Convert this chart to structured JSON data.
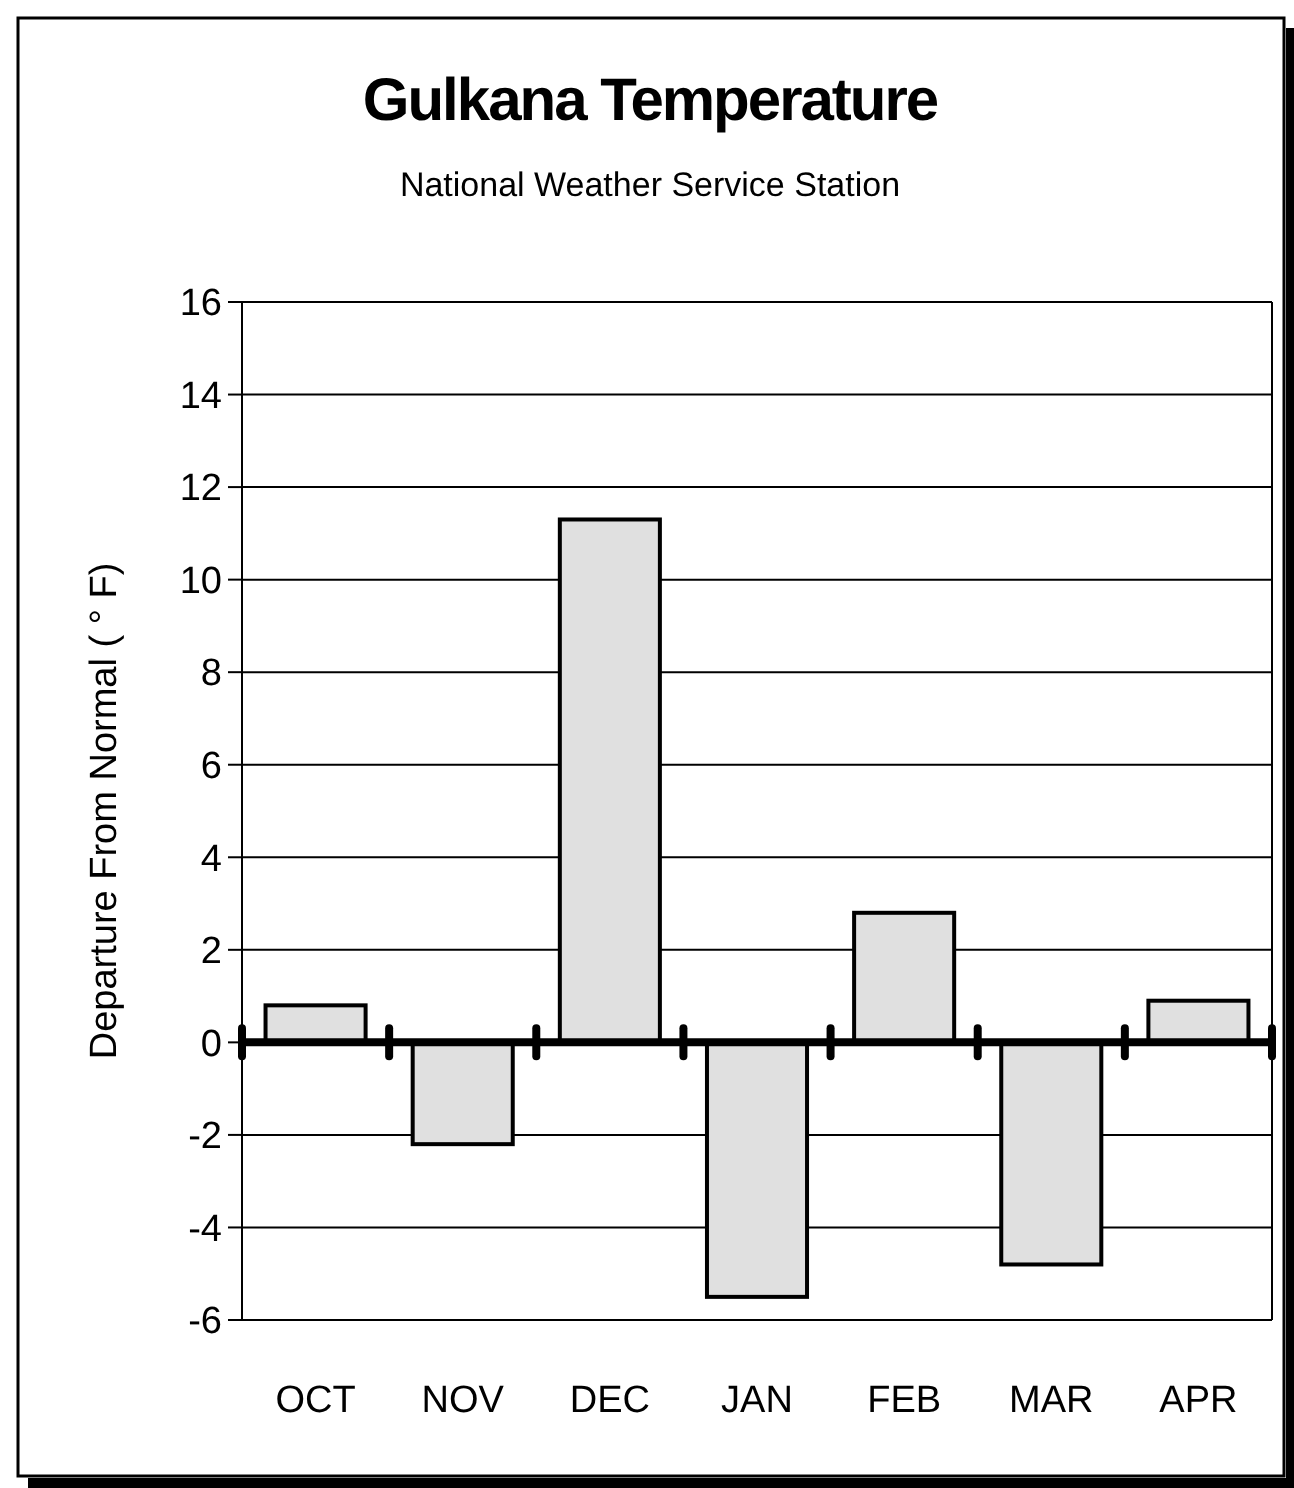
{
  "chart_data": {
    "type": "bar",
    "title": "Gulkana Temperature",
    "subtitle": "National Weather Service Station",
    "ylabel": "Departure From Normal ( ° F)",
    "categories": [
      "OCT",
      "NOV",
      "DEC",
      "JAN",
      "FEB",
      "MAR",
      "APR"
    ],
    "values": [
      0.8,
      -2.2,
      11.3,
      -5.5,
      2.8,
      -4.8,
      0.9
    ],
    "color": "#e0e0e0",
    "ylim": [
      -6,
      16
    ],
    "yticks": [
      -6,
      -4,
      -2,
      0,
      2,
      4,
      6,
      8,
      10,
      12,
      14,
      16
    ],
    "grid": "y"
  }
}
